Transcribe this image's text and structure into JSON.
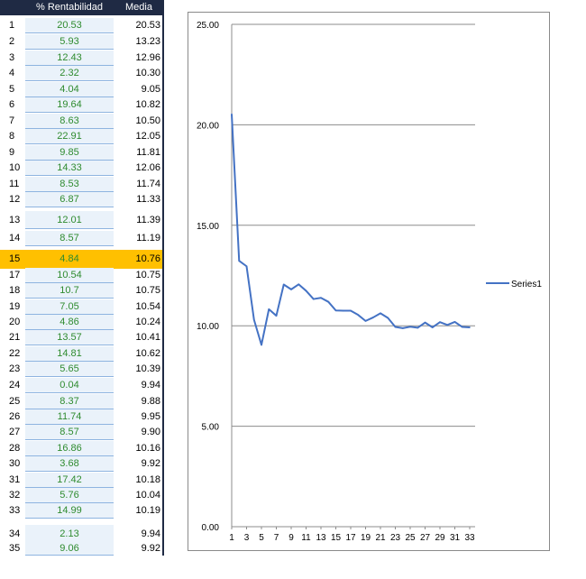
{
  "table": {
    "header_rent": "% Rentabilidad",
    "header_media": "Media",
    "highlight_color": "#ffc000",
    "rows": [
      {
        "idx": "1",
        "rent": "20.53",
        "media": "20.53"
      },
      {
        "idx": "2",
        "rent": "5.93",
        "media": "13.23"
      },
      {
        "idx": "3",
        "rent": "12.43",
        "media": "12.96"
      },
      {
        "idx": "4",
        "rent": "2.32",
        "media": "10.30"
      },
      {
        "idx": "5",
        "rent": "4.04",
        "media": "9.05"
      },
      {
        "idx": "6",
        "rent": "19.64",
        "media": "10.82"
      },
      {
        "idx": "7",
        "rent": "8.63",
        "media": "10.50"
      },
      {
        "idx": "8",
        "rent": "22.91",
        "media": "12.05"
      },
      {
        "idx": "9",
        "rent": "9.85",
        "media": "11.81"
      },
      {
        "idx": "10",
        "rent": "14.33",
        "media": "12.06"
      },
      {
        "idx": "11",
        "rent": "8.53",
        "media": "11.74"
      },
      {
        "idx": "12",
        "rent": "6.87",
        "media": "11.33"
      },
      {
        "idx": "13",
        "rent": "12.01",
        "media": "11.39"
      },
      {
        "idx": "14",
        "rent": "8.57",
        "media": "11.19"
      },
      {
        "idx": "15",
        "rent": "4.84",
        "media": "10.76",
        "highlight": true
      },
      {
        "idx": "17",
        "rent": "10.54",
        "media": "10.75"
      },
      {
        "idx": "18",
        "rent": "10.7",
        "media": "10.75"
      },
      {
        "idx": "19",
        "rent": "7.05",
        "media": "10.54"
      },
      {
        "idx": "20",
        "rent": "4.86",
        "media": "10.24"
      },
      {
        "idx": "21",
        "rent": "13.57",
        "media": "10.41"
      },
      {
        "idx": "22",
        "rent": "14.81",
        "media": "10.62"
      },
      {
        "idx": "23",
        "rent": "5.65",
        "media": "10.39"
      },
      {
        "idx": "24",
        "rent": "0.04",
        "media": "9.94"
      },
      {
        "idx": "25",
        "rent": "8.37",
        "media": "9.88"
      },
      {
        "idx": "26",
        "rent": "11.74",
        "media": "9.95"
      },
      {
        "idx": "27",
        "rent": "8.57",
        "media": "9.90"
      },
      {
        "idx": "28",
        "rent": "16.86",
        "media": "10.16"
      },
      {
        "idx": "30",
        "rent": "3.68",
        "media": "9.92"
      },
      {
        "idx": "31",
        "rent": "17.42",
        "media": "10.18"
      },
      {
        "idx": "32",
        "rent": "5.76",
        "media": "10.04"
      },
      {
        "idx": "33",
        "rent": "14.99",
        "media": "10.19"
      },
      {
        "idx": "34",
        "rent": "2.13",
        "media": "9.94"
      },
      {
        "idx": "35",
        "rent": "9.06",
        "media": "9.92"
      }
    ]
  },
  "chart_data": {
    "type": "line",
    "ylim": [
      0,
      25
    ],
    "yticks": [
      "0.00",
      "5.00",
      "10.00",
      "15.00",
      "20.00",
      "25.00"
    ],
    "xticks": [
      "1",
      "3",
      "5",
      "7",
      "9",
      "11",
      "13",
      "15",
      "17",
      "19",
      "21",
      "23",
      "25",
      "27",
      "29",
      "31",
      "33"
    ],
    "grid": true,
    "legend": "right",
    "series_color": "#4472c4",
    "series": [
      {
        "name": "Series1",
        "x": [
          1,
          2,
          3,
          4,
          5,
          6,
          7,
          8,
          9,
          10,
          11,
          12,
          13,
          14,
          15,
          16,
          17,
          18,
          19,
          20,
          21,
          22,
          23,
          24,
          25,
          26,
          27,
          28,
          29,
          30,
          31,
          32,
          33
        ],
        "values": [
          20.53,
          13.23,
          12.96,
          10.3,
          9.05,
          10.82,
          10.5,
          12.05,
          11.81,
          12.06,
          11.74,
          11.33,
          11.39,
          11.19,
          10.76,
          10.75,
          10.75,
          10.54,
          10.24,
          10.41,
          10.62,
          10.39,
          9.94,
          9.88,
          9.95,
          9.9,
          10.16,
          9.92,
          10.18,
          10.04,
          10.19,
          9.94,
          9.92
        ]
      }
    ]
  }
}
